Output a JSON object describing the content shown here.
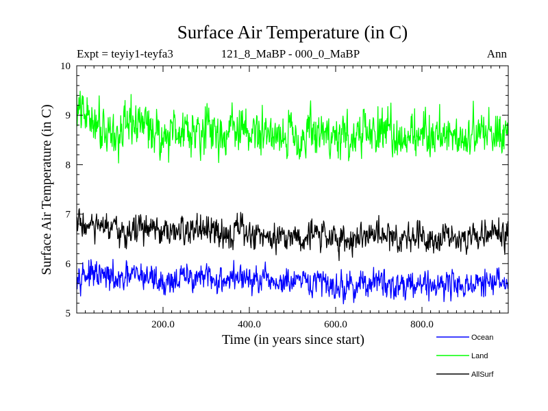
{
  "chart_data": {
    "type": "line",
    "title": "Surface Air Temperature (in C)",
    "subtitle_left": "Expt = teyiy1-teyfa3",
    "subtitle_center": "121_8_MaBP - 000_0_MaBP",
    "subtitle_right": "Ann",
    "xlabel": "Time (in years since start)",
    "ylabel": "Surface Air Temperature (in C)",
    "xlim": [
      0,
      1000
    ],
    "ylim": [
      5,
      10
    ],
    "xticks": [
      200,
      400,
      600,
      800
    ],
    "xtick_labels": [
      "200.0",
      "400.0",
      "600.0",
      "800.0"
    ],
    "yticks": [
      5,
      6,
      7,
      8,
      9,
      10
    ],
    "ytick_labels": [
      "5",
      "6",
      "7",
      "8",
      "9",
      "10"
    ],
    "legend_position": "bottom-right",
    "series": [
      {
        "name": "Ocean",
        "color": "#0000ff",
        "x": [
          0,
          25,
          50,
          75,
          100,
          125,
          150,
          175,
          200,
          225,
          250,
          275,
          300,
          325,
          350,
          375,
          400,
          425,
          450,
          475,
          500,
          525,
          550,
          575,
          600,
          625,
          650,
          675,
          700,
          725,
          750,
          775,
          800,
          825,
          850,
          875,
          900,
          925,
          950,
          975,
          1000
        ],
        "values": [
          5.85,
          5.78,
          5.74,
          5.72,
          5.62,
          5.74,
          5.76,
          5.72,
          5.6,
          5.68,
          5.7,
          5.74,
          5.69,
          5.65,
          5.7,
          5.74,
          5.66,
          5.62,
          5.64,
          5.6,
          5.62,
          5.58,
          5.61,
          5.63,
          5.55,
          5.52,
          5.57,
          5.6,
          5.62,
          5.58,
          5.56,
          5.62,
          5.6,
          5.56,
          5.62,
          5.58,
          5.57,
          5.55,
          5.6,
          5.62,
          5.62
        ]
      },
      {
        "name": "Land",
        "color": "#00ff00",
        "x": [
          0,
          25,
          50,
          75,
          100,
          125,
          150,
          175,
          200,
          225,
          250,
          275,
          300,
          325,
          350,
          375,
          400,
          425,
          450,
          475,
          500,
          525,
          550,
          575,
          600,
          625,
          650,
          675,
          700,
          725,
          750,
          775,
          800,
          825,
          850,
          875,
          900,
          925,
          950,
          975,
          1000
        ],
        "values": [
          9.1,
          8.95,
          8.9,
          8.7,
          8.55,
          8.8,
          8.85,
          8.75,
          8.55,
          8.7,
          8.72,
          8.78,
          8.7,
          8.62,
          8.68,
          8.72,
          8.65,
          8.6,
          8.68,
          8.62,
          8.64,
          8.58,
          8.63,
          8.66,
          8.55,
          8.55,
          8.6,
          8.62,
          8.67,
          8.6,
          8.58,
          8.63,
          8.65,
          8.6,
          8.66,
          8.62,
          8.6,
          8.58,
          8.64,
          8.7,
          8.72
        ]
      },
      {
        "name": "AllSurf",
        "color": "#000000",
        "x": [
          0,
          25,
          50,
          75,
          100,
          125,
          150,
          175,
          200,
          225,
          250,
          275,
          300,
          325,
          350,
          375,
          400,
          425,
          450,
          475,
          500,
          525,
          550,
          575,
          600,
          625,
          650,
          675,
          700,
          725,
          750,
          775,
          800,
          825,
          850,
          875,
          900,
          925,
          950,
          975,
          1000
        ],
        "values": [
          6.85,
          6.75,
          6.72,
          6.7,
          6.55,
          6.68,
          6.72,
          6.68,
          6.55,
          6.62,
          6.65,
          6.7,
          6.64,
          6.6,
          6.64,
          6.68,
          6.6,
          6.55,
          6.6,
          6.56,
          6.58,
          6.53,
          6.58,
          6.6,
          6.5,
          6.47,
          6.54,
          6.56,
          6.6,
          6.55,
          6.52,
          6.58,
          6.58,
          6.52,
          6.6,
          6.56,
          6.55,
          6.52,
          6.58,
          6.62,
          6.64
        ]
      }
    ]
  }
}
